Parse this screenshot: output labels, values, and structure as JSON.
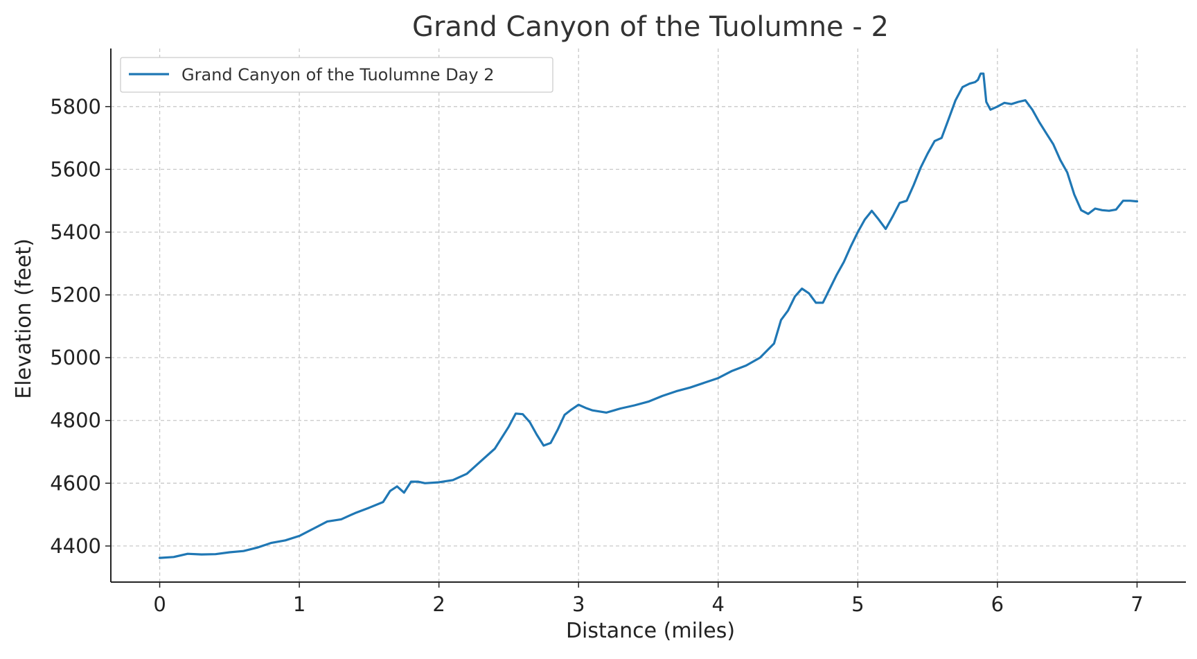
{
  "chart_data": {
    "type": "line",
    "title": "Grand Canyon of the Tuolumne - 2",
    "xlabel": "Distance (miles)",
    "ylabel": "Elevation (feet)",
    "xlim": [
      -0.35,
      7.35
    ],
    "ylim": [
      4285,
      5985
    ],
    "xticks": [
      "0",
      "1",
      "2",
      "3",
      "4",
      "5",
      "6",
      "7"
    ],
    "yticks": [
      "4400",
      "4600",
      "4800",
      "5000",
      "5200",
      "5400",
      "5600",
      "5800"
    ],
    "grid": true,
    "legend_position": "upper-left",
    "series": [
      {
        "name": "Grand Canyon of the Tuolumne Day 2",
        "color": "#1f77b4",
        "x": [
          0,
          0.1,
          0.2,
          0.3,
          0.4,
          0.5,
          0.6,
          0.7,
          0.8,
          0.9,
          1.0,
          1.1,
          1.2,
          1.3,
          1.4,
          1.5,
          1.6,
          1.65,
          1.7,
          1.75,
          1.8,
          1.85,
          1.9,
          2.0,
          2.1,
          2.2,
          2.3,
          2.4,
          2.5,
          2.55,
          2.6,
          2.65,
          2.7,
          2.75,
          2.8,
          2.85,
          2.9,
          2.95,
          3.0,
          3.05,
          3.1,
          3.2,
          3.3,
          3.4,
          3.5,
          3.6,
          3.7,
          3.8,
          3.9,
          4.0,
          4.1,
          4.2,
          4.3,
          4.4,
          4.45,
          4.5,
          4.55,
          4.6,
          4.65,
          4.7,
          4.75,
          4.8,
          4.85,
          4.9,
          4.95,
          5.0,
          5.05,
          5.1,
          5.15,
          5.2,
          5.25,
          5.3,
          5.35,
          5.4,
          5.45,
          5.5,
          5.55,
          5.6,
          5.65,
          5.7,
          5.75,
          5.8,
          5.84,
          5.86,
          5.88,
          5.9,
          5.92,
          5.95,
          6.0,
          6.05,
          6.1,
          6.15,
          6.2,
          6.25,
          6.3,
          6.35,
          6.4,
          6.45,
          6.5,
          6.55,
          6.6,
          6.65,
          6.7,
          6.75,
          6.8,
          6.85,
          6.9,
          6.95,
          7.0
        ],
        "y": [
          4362,
          4365,
          4375,
          4373,
          4374,
          4380,
          4384,
          4395,
          4410,
          4418,
          4432,
          4455,
          4478,
          4485,
          4505,
          4522,
          4540,
          4575,
          4590,
          4570,
          4605,
          4605,
          4600,
          4603,
          4610,
          4630,
          4670,
          4710,
          4780,
          4822,
          4820,
          4795,
          4755,
          4720,
          4728,
          4770,
          4818,
          4835,
          4850,
          4840,
          4832,
          4825,
          4838,
          4848,
          4860,
          4878,
          4893,
          4905,
          4920,
          4935,
          4958,
          4975,
          5000,
          5045,
          5120,
          5150,
          5195,
          5220,
          5205,
          5175,
          5175,
          5220,
          5265,
          5305,
          5355,
          5400,
          5440,
          5468,
          5440,
          5410,
          5450,
          5493,
          5500,
          5550,
          5605,
          5650,
          5690,
          5700,
          5760,
          5820,
          5862,
          5873,
          5878,
          5885,
          5905,
          5905,
          5815,
          5790,
          5800,
          5812,
          5808,
          5815,
          5820,
          5790,
          5750,
          5715,
          5680,
          5630,
          5590,
          5520,
          5470,
          5458,
          5475,
          5470,
          5468,
          5472,
          5500,
          5500,
          5498
        ]
      }
    ]
  }
}
